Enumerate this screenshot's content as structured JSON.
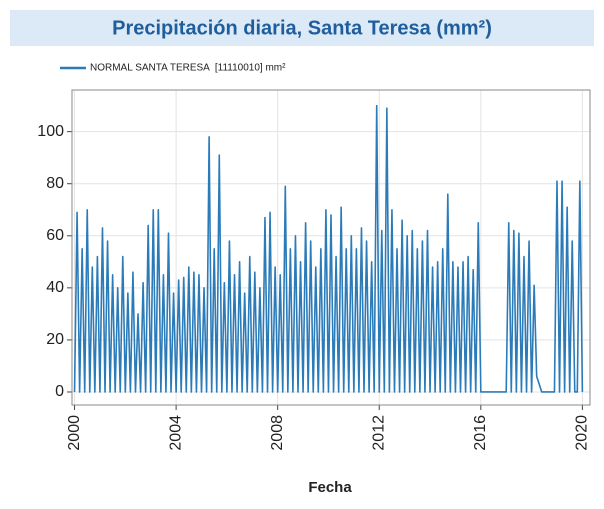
{
  "chart_data": {
    "type": "line",
    "title": "Precipitación diaria, Santa Teresa (mm²)",
    "xlabel": "Fecha",
    "xlim": [
      1999.9,
      2020.3
    ],
    "ylim": [
      -5,
      116
    ],
    "xticks": [
      2000,
      2004,
      2008,
      2012,
      2016,
      2020
    ],
    "yticks": [
      0,
      20,
      40,
      60,
      80,
      100
    ],
    "grid": true,
    "series": [
      {
        "name": "NORMAL SANTA TERESA  [11110010] mm²",
        "color": "#2b7bb9",
        "x": [
          2000.0,
          2000.1,
          2000.2,
          2000.3,
          2000.4,
          2000.5,
          2000.6,
          2000.7,
          2000.8,
          2000.9,
          2001.0,
          2001.1,
          2001.2,
          2001.3,
          2001.4,
          2001.5,
          2001.6,
          2001.7,
          2001.8,
          2001.9,
          2002.0,
          2002.1,
          2002.2,
          2002.3,
          2002.4,
          2002.5,
          2002.6,
          2002.7,
          2002.8,
          2002.9,
          2003.0,
          2003.1,
          2003.2,
          2003.3,
          2003.4,
          2003.5,
          2003.6,
          2003.7,
          2003.8,
          2003.9,
          2004.0,
          2004.1,
          2004.2,
          2004.3,
          2004.4,
          2004.5,
          2004.6,
          2004.7,
          2004.8,
          2004.9,
          2005.0,
          2005.1,
          2005.2,
          2005.3,
          2005.4,
          2005.5,
          2005.6,
          2005.7,
          2005.8,
          2005.9,
          2006.0,
          2006.1,
          2006.2,
          2006.3,
          2006.4,
          2006.5,
          2006.6,
          2006.7,
          2006.8,
          2006.9,
          2007.0,
          2007.1,
          2007.2,
          2007.3,
          2007.4,
          2007.5,
          2007.6,
          2007.7,
          2007.8,
          2007.9,
          2008.0,
          2008.1,
          2008.2,
          2008.3,
          2008.4,
          2008.5,
          2008.6,
          2008.7,
          2008.8,
          2008.9,
          2009.0,
          2009.1,
          2009.2,
          2009.3,
          2009.4,
          2009.5,
          2009.6,
          2009.7,
          2009.8,
          2009.9,
          2010.0,
          2010.1,
          2010.2,
          2010.3,
          2010.4,
          2010.5,
          2010.6,
          2010.7,
          2010.8,
          2010.9,
          2011.0,
          2011.1,
          2011.2,
          2011.3,
          2011.4,
          2011.5,
          2011.6,
          2011.7,
          2011.8,
          2011.9,
          2012.0,
          2012.1,
          2012.2,
          2012.3,
          2012.4,
          2012.5,
          2012.6,
          2012.7,
          2012.8,
          2012.9,
          2013.0,
          2013.1,
          2013.2,
          2013.3,
          2013.4,
          2013.5,
          2013.6,
          2013.7,
          2013.8,
          2013.9,
          2014.0,
          2014.1,
          2014.2,
          2014.3,
          2014.4,
          2014.5,
          2014.6,
          2014.7,
          2014.8,
          2014.9,
          2015.0,
          2015.1,
          2015.2,
          2015.3,
          2015.4,
          2015.5,
          2015.6,
          2015.7,
          2015.8,
          2015.9,
          2016.0,
          2016.9,
          2017.0,
          2017.1,
          2017.2,
          2017.3,
          2017.4,
          2017.5,
          2017.6,
          2017.7,
          2017.8,
          2017.9,
          2018.0,
          2018.1,
          2018.2,
          2018.4,
          2018.9,
          2019.0,
          2019.1,
          2019.2,
          2019.3,
          2019.4,
          2019.5,
          2019.6,
          2019.7,
          2019.8,
          2019.9,
          2020.0
        ],
        "values": [
          0,
          69,
          0,
          55,
          0,
          70,
          0,
          48,
          0,
          52,
          0,
          63,
          0,
          58,
          0,
          45,
          0,
          40,
          0,
          52,
          0,
          38,
          0,
          46,
          0,
          30,
          0,
          42,
          0,
          64,
          0,
          70,
          0,
          70,
          0,
          45,
          0,
          61,
          0,
          38,
          0,
          43,
          0,
          44,
          0,
          48,
          0,
          46,
          0,
          45,
          0,
          40,
          0,
          98,
          0,
          55,
          0,
          91,
          0,
          42,
          0,
          58,
          0,
          45,
          0,
          50,
          0,
          38,
          0,
          52,
          0,
          46,
          0,
          40,
          0,
          67,
          0,
          69,
          0,
          48,
          0,
          45,
          0,
          79,
          0,
          55,
          0,
          60,
          0,
          50,
          0,
          65,
          0,
          58,
          0,
          48,
          0,
          55,
          0,
          70,
          0,
          68,
          0,
          52,
          0,
          71,
          0,
          55,
          0,
          60,
          0,
          55,
          0,
          63,
          0,
          58,
          0,
          50,
          0,
          110,
          0,
          62,
          0,
          109,
          0,
          70,
          0,
          55,
          0,
          66,
          0,
          60,
          0,
          62,
          0,
          55,
          0,
          58,
          0,
          62,
          0,
          48,
          0,
          50,
          0,
          55,
          0,
          76,
          0,
          50,
          0,
          48,
          0,
          50,
          0,
          52,
          0,
          47,
          0,
          65,
          0,
          0,
          0,
          65,
          0,
          62,
          0,
          61,
          0,
          52,
          0,
          58,
          0,
          41,
          6,
          0,
          0,
          81,
          0,
          81,
          0,
          71,
          0,
          58,
          0,
          0,
          81,
          0
        ]
      }
    ]
  }
}
